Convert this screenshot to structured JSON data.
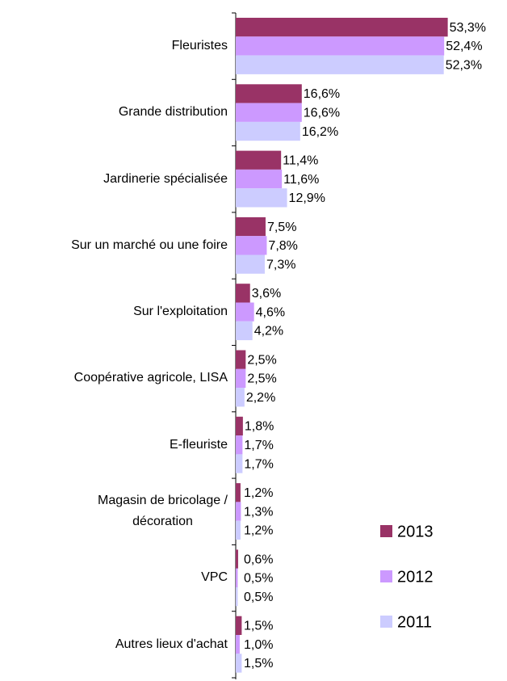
{
  "chart_data": {
    "type": "hbar",
    "categories": [
      "Fleuristes",
      "Grande distribution",
      "Jardinerie spécialisée",
      "Sur un marché ou une foire",
      "Sur l'exploitation",
      "Coopérative agricole, LISA",
      "E-fleuriste",
      "Magasin de bricolage /\ndécoration",
      "VPC",
      "Autres lieux d'achat"
    ],
    "series": [
      {
        "name": "2013",
        "color": "#993366",
        "values": [
          53.3,
          16.6,
          11.4,
          7.5,
          3.6,
          2.5,
          1.8,
          1.2,
          0.6,
          1.5
        ],
        "value_labels": [
          "53,3%",
          "16,6%",
          "11,4%",
          "7,5%",
          "3,6%",
          "2,5%",
          "1,8%",
          "1,2%",
          "0,6%",
          "1,5%"
        ]
      },
      {
        "name": "2012",
        "color": "#cc99ff",
        "values": [
          52.4,
          16.6,
          11.6,
          7.8,
          4.6,
          2.5,
          1.7,
          1.3,
          0.5,
          1.0
        ],
        "value_labels": [
          "52,4%",
          "16,6%",
          "11,6%",
          "7,8%",
          "4,6%",
          "2,5%",
          "1,7%",
          "1,3%",
          "0,5%",
          "1,0%"
        ]
      },
      {
        "name": "2011",
        "color": "#ccccff",
        "values": [
          52.3,
          16.2,
          12.9,
          7.3,
          4.2,
          2.2,
          1.7,
          1.2,
          0.5,
          1.5
        ],
        "value_labels": [
          "52,3%",
          "16,2%",
          "12,9%",
          "7,3%",
          "4,2%",
          "2,2%",
          "1,7%",
          "1,2%",
          "0,5%",
          "1,5%"
        ]
      }
    ],
    "xlim": [
      0,
      55
    ],
    "legend": "right"
  }
}
